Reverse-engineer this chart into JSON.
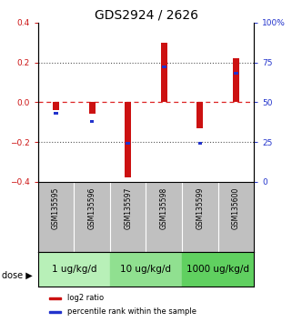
{
  "title": "GDS2924 / 2626",
  "samples": [
    "GSM135595",
    "GSM135596",
    "GSM135597",
    "GSM135598",
    "GSM135599",
    "GSM135600"
  ],
  "log2_ratios": [
    -0.04,
    -0.06,
    -0.38,
    0.3,
    -0.13,
    0.22
  ],
  "percentile_ranks": [
    43,
    38,
    24,
    72,
    24,
    68
  ],
  "dose_labels": [
    "1 ug/kg/d",
    "10 ug/kg/d",
    "1000 ug/kg/d"
  ],
  "dose_colors": [
    "#b8f0b8",
    "#90e090",
    "#60d060"
  ],
  "bar_color_red": "#cc1111",
  "bar_color_blue": "#2233cc",
  "left_ylim": [
    -0.4,
    0.4
  ],
  "right_ylim": [
    0,
    100
  ],
  "left_yticks": [
    -0.4,
    -0.2,
    0.0,
    0.2,
    0.4
  ],
  "right_yticks": [
    0,
    25,
    50,
    75,
    100
  ],
  "hline_zero_color": "#dd2222",
  "hline_dotted_color": "#555555",
  "bg_color": "#ffffff",
  "sample_box_color": "#c0c0c0",
  "title_fontsize": 10,
  "tick_fontsize": 6.5,
  "sample_fontsize": 5.5,
  "dose_fontsize": 7.5,
  "legend_fontsize": 6
}
